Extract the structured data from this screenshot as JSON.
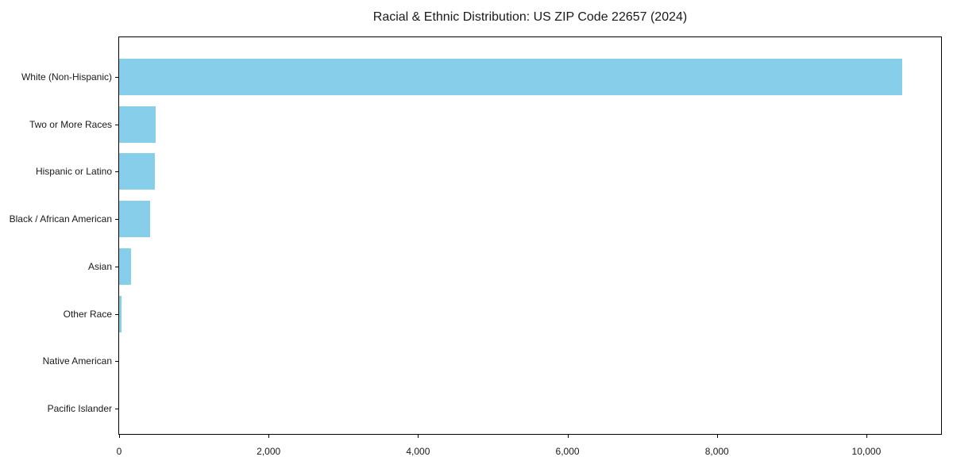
{
  "chart_data": {
    "type": "bar",
    "orientation": "horizontal",
    "title": "Racial & Ethnic Distribution: US ZIP Code 22657 (2024)",
    "categories": [
      "White (Non-Hispanic)",
      "Two or More Races",
      "Hispanic or Latino",
      "Black / African American",
      "Asian",
      "Other Race",
      "Native American",
      "Pacific Islander"
    ],
    "values": [
      10480,
      490,
      480,
      410,
      160,
      30,
      0,
      0
    ],
    "xlabel": "",
    "ylabel": "",
    "xlim": [
      0,
      11000
    ],
    "xtick_values": [
      0,
      2000,
      4000,
      6000,
      8000,
      10000
    ],
    "xtick_labels": [
      "0",
      "2,000",
      "4,000",
      "6,000",
      "8,000",
      "10,000"
    ],
    "grid": false,
    "legend": "none",
    "colors": {
      "bar": "#87CEEB",
      "axis": "#000000",
      "text": "#1a1a1a",
      "background": "#ffffff"
    }
  }
}
